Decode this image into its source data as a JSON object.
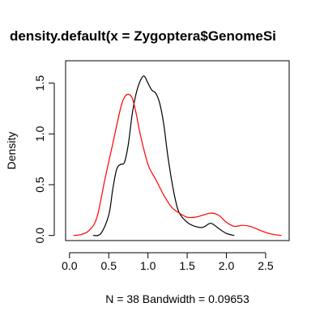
{
  "chart_data": {
    "type": "line",
    "title": "density.default(x = Zygoptera$GenomeSi",
    "xlabel": "N = 38   Bandwidth = 0.09653",
    "ylabel": "Density",
    "xlim": [
      -0.05,
      2.8
    ],
    "ylim": [
      -0.05,
      1.72
    ],
    "x_ticks": [
      0.0,
      0.5,
      1.0,
      1.5,
      2.0,
      2.5
    ],
    "x_tick_labels": [
      "0.0",
      "0.5",
      "1.0",
      "1.5",
      "2.0",
      "2.5"
    ],
    "y_ticks": [
      0.0,
      0.5,
      1.0,
      1.5
    ],
    "y_tick_labels": [
      "0.0",
      "0.5",
      "1.0",
      "1.5"
    ],
    "grid": false,
    "series": [
      {
        "color": "#000000",
        "x": [
          0.3,
          0.4,
          0.5,
          0.55,
          0.6,
          0.65,
          0.7,
          0.75,
          0.8,
          0.85,
          0.9,
          0.95,
          1.0,
          1.05,
          1.1,
          1.15,
          1.2,
          1.25,
          1.3,
          1.35,
          1.4,
          1.5,
          1.6,
          1.7,
          1.8,
          1.9,
          2.0,
          2.1
        ],
        "y": [
          0.0,
          0.02,
          0.2,
          0.45,
          0.65,
          0.7,
          0.72,
          0.9,
          1.2,
          1.4,
          1.52,
          1.57,
          1.5,
          1.43,
          1.4,
          1.3,
          1.1,
          0.8,
          0.55,
          0.35,
          0.22,
          0.13,
          0.09,
          0.08,
          0.12,
          0.07,
          0.02,
          0.0
        ]
      },
      {
        "color": "#ff0000",
        "x": [
          0.05,
          0.15,
          0.25,
          0.35,
          0.45,
          0.55,
          0.65,
          0.7,
          0.75,
          0.8,
          0.85,
          0.9,
          1.0,
          1.1,
          1.2,
          1.3,
          1.4,
          1.5,
          1.6,
          1.7,
          1.8,
          1.9,
          2.0,
          2.1,
          2.2,
          2.3,
          2.4,
          2.5,
          2.6,
          2.7
        ],
        "y": [
          0.0,
          0.01,
          0.05,
          0.18,
          0.55,
          0.9,
          1.25,
          1.36,
          1.39,
          1.35,
          1.2,
          1.0,
          0.7,
          0.55,
          0.4,
          0.28,
          0.22,
          0.18,
          0.18,
          0.2,
          0.22,
          0.2,
          0.13,
          0.09,
          0.1,
          0.09,
          0.06,
          0.03,
          0.01,
          0.0
        ]
      }
    ]
  }
}
